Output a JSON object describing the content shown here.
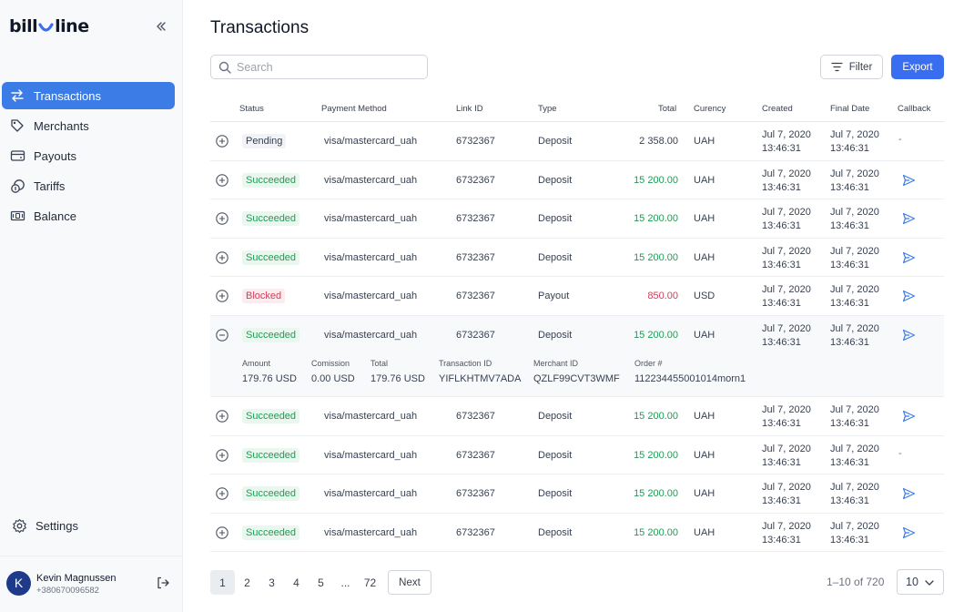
{
  "app": {
    "logo_left": "bill",
    "logo_right": "line",
    "collapse_icon": "double-chevron-left-icon"
  },
  "sidebar": {
    "items": [
      {
        "label": "Transactions",
        "icon": "swap-arrows-icon",
        "active": true
      },
      {
        "label": "Merchants",
        "icon": "tag-icon",
        "active": false
      },
      {
        "label": "Payouts",
        "icon": "wallet-icon",
        "active": false
      },
      {
        "label": "Tariffs",
        "icon": "coins-icon",
        "active": false
      },
      {
        "label": "Balance",
        "icon": "banknote-icon",
        "active": false
      }
    ],
    "settings_label": "Settings",
    "user": {
      "initial": "K",
      "name": "Kevin Magnussen",
      "phone": "+380670096582"
    }
  },
  "main": {
    "title": "Transactions",
    "search_placeholder": "Search",
    "filter_label": "Filter",
    "export_label": "Export"
  },
  "table": {
    "headers": {
      "status": "Status",
      "method": "Payment Method",
      "link": "Link ID",
      "type": "Type",
      "total": "Total",
      "currency": "Curency",
      "created": "Created",
      "final": "Final Date",
      "callback": "Callback"
    },
    "rows": [
      {
        "status": "Pending",
        "method": "visa/mastercard_uah",
        "link": "6732367",
        "type": "Deposit",
        "total": "2 358.00",
        "currency": "UAH",
        "created_date": "Jul 7, 2020",
        "created_time": "13:46:31",
        "final_date": "Jul 7, 2020",
        "final_time": "13:46:31",
        "callback": "-"
      },
      {
        "status": "Succeeded",
        "method": "visa/mastercard_uah",
        "link": "6732367",
        "type": "Deposit",
        "total": "15 200.00",
        "currency": "UAH",
        "created_date": "Jul 7, 2020",
        "created_time": "13:46:31",
        "final_date": "Jul 7, 2020",
        "final_time": "13:46:31",
        "callback": "send"
      },
      {
        "status": "Succeeded",
        "method": "visa/mastercard_uah",
        "link": "6732367",
        "type": "Deposit",
        "total": "15 200.00",
        "currency": "UAH",
        "created_date": "Jul 7, 2020",
        "created_time": "13:46:31",
        "final_date": "Jul 7, 2020",
        "final_time": "13:46:31",
        "callback": "send"
      },
      {
        "status": "Succeeded",
        "method": "visa/mastercard_uah",
        "link": "6732367",
        "type": "Deposit",
        "total": "15 200.00",
        "currency": "UAH",
        "created_date": "Jul 7, 2020",
        "created_time": "13:46:31",
        "final_date": "Jul 7, 2020",
        "final_time": "13:46:31",
        "callback": "send"
      },
      {
        "status": "Blocked",
        "method": "visa/mastercard_uah",
        "link": "6732367",
        "type": "Payout",
        "total": "850.00",
        "currency": "USD",
        "created_date": "Jul 7, 2020",
        "created_time": "13:46:31",
        "final_date": "Jul 7, 2020",
        "final_time": "13:46:31",
        "callback": "send"
      },
      {
        "status": "Succeeded",
        "method": "visa/mastercard_uah",
        "link": "6732367",
        "type": "Deposit",
        "total": "15 200.00",
        "currency": "UAH",
        "created_date": "Jul 7, 2020",
        "created_time": "13:46:31",
        "final_date": "Jul 7, 2020",
        "final_time": "13:46:31",
        "callback": "send",
        "expanded": true
      },
      {
        "status": "Succeeded",
        "method": "visa/mastercard_uah",
        "link": "6732367",
        "type": "Deposit",
        "total": "15 200.00",
        "currency": "UAH",
        "created_date": "Jul 7, 2020",
        "created_time": "13:46:31",
        "final_date": "Jul 7, 2020",
        "final_time": "13:46:31",
        "callback": "send"
      },
      {
        "status": "Succeeded",
        "method": "visa/mastercard_uah",
        "link": "6732367",
        "type": "Deposit",
        "total": "15 200.00",
        "currency": "UAH",
        "created_date": "Jul 7, 2020",
        "created_time": "13:46:31",
        "final_date": "Jul 7, 2020",
        "final_time": "13:46:31",
        "callback": "-"
      },
      {
        "status": "Succeeded",
        "method": "visa/mastercard_uah",
        "link": "6732367",
        "type": "Deposit",
        "total": "15 200.00",
        "currency": "UAH",
        "created_date": "Jul 7, 2020",
        "created_time": "13:46:31",
        "final_date": "Jul 7, 2020",
        "final_time": "13:46:31",
        "callback": "send"
      },
      {
        "status": "Succeeded",
        "method": "visa/mastercard_uah",
        "link": "6732367",
        "type": "Deposit",
        "total": "15 200.00",
        "currency": "UAH",
        "created_date": "Jul 7, 2020",
        "created_time": "13:46:31",
        "final_date": "Jul 7, 2020",
        "final_time": "13:46:31",
        "callback": "send"
      }
    ],
    "details": [
      {
        "label": "Amount",
        "value": "179.76 USD"
      },
      {
        "label": "Comission",
        "value": "0.00 USD"
      },
      {
        "label": "Total",
        "value": "179.76 USD"
      },
      {
        "label": "Transaction ID",
        "value": "YIFLKHTMV7ADA"
      },
      {
        "label": "Merchant ID",
        "value": "QZLF99CVT3WMF"
      },
      {
        "label": "Order #",
        "value": "112234455001014morn1"
      }
    ]
  },
  "pagination": {
    "pages": [
      "1",
      "2",
      "3",
      "4",
      "5",
      "...",
      "72"
    ],
    "current": "1",
    "next_label": "Next",
    "range_text": "1–10 of 720",
    "per_page": "10"
  },
  "colors": {
    "accent": "#3b7ce6",
    "export": "#3a6ef0",
    "success": "#1f9d55",
    "danger": "#d23d57"
  }
}
